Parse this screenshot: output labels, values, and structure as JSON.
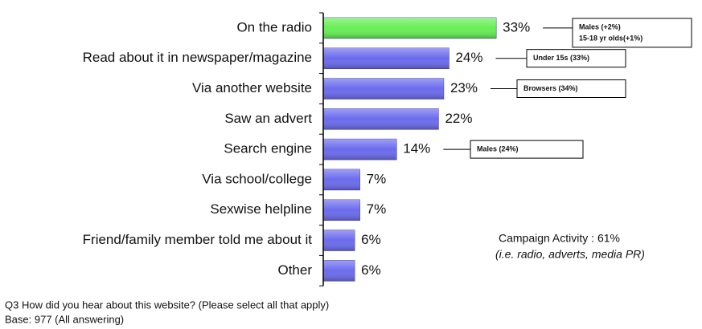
{
  "chart_data": {
    "type": "bar",
    "orientation": "horizontal",
    "categories": [
      "On the radio",
      "Read about it in newspaper/magazine",
      "Via another website",
      "Saw an advert",
      "Search engine",
      "Via school/college",
      "Sexwise helpline",
      "Friend/family member told me about it",
      "Other"
    ],
    "values": [
      33,
      24,
      23,
      22,
      14,
      7,
      7,
      6,
      6
    ],
    "value_labels": [
      "33%",
      "24%",
      "23%",
      "22%",
      "14%",
      "7%",
      "7%",
      "6%",
      "6%"
    ],
    "colors": [
      "#66ee55",
      "#6b6bee",
      "#6b6bee",
      "#6b6bee",
      "#6b6bee",
      "#6b6bee",
      "#6b6bee",
      "#6b6bee",
      "#6b6bee"
    ],
    "annotations": [
      {
        "category": 0,
        "lines": [
          "Males (+2%)",
          "15-18 yr olds(+1%)"
        ]
      },
      {
        "category": 1,
        "lines": [
          "Under 15s (33%)"
        ]
      },
      {
        "category": 2,
        "lines": [
          "Browsers (34%)"
        ]
      },
      {
        "category": 4,
        "lines": [
          "Males (24%)"
        ]
      }
    ],
    "note": [
      "Campaign Activity : 61%",
      "(i.e. radio, adverts, media PR)"
    ],
    "footnotes": [
      "Q3 How did you hear about this website? (Please select all that apply)",
      "Base:   977 (All answering)"
    ]
  }
}
